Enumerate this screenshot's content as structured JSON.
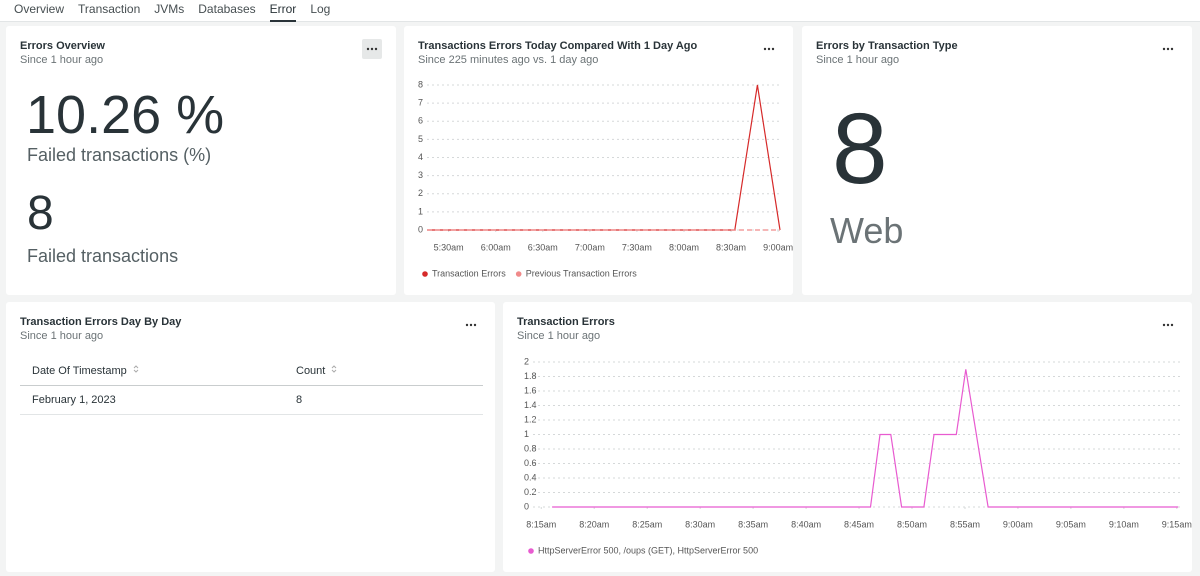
{
  "tabs": [
    "Overview",
    "Transaction",
    "JVMs",
    "Databases",
    "Error",
    "Log"
  ],
  "active_tab": 4,
  "widgets": [
    {
      "title": "Errors Overview",
      "subtitle": "Since 1 hour ago",
      "metrics": [
        {
          "value": "10.26 %",
          "label": "Failed transactions (%)"
        },
        {
          "value": "8",
          "label": "Failed transactions"
        }
      ]
    },
    {
      "title": "Transactions Errors Today Compared With 1 Day Ago",
      "subtitle": "Since 225 minutes ago vs. 1 day ago",
      "chart": {
        "type": "line",
        "xlim": [
          5.27,
          9.02
        ],
        "ylim": [
          0,
          8
        ],
        "yticks": [
          0,
          1,
          2,
          3,
          4,
          5,
          6,
          7,
          8
        ],
        "xticks": [
          {
            "value": 5.5,
            "label": "5:30am"
          },
          {
            "value": 6,
            "label": "6:00am"
          },
          {
            "value": 6.5,
            "label": "6:30am"
          },
          {
            "value": 7,
            "label": "7:00am"
          },
          {
            "value": 7.5,
            "label": "7:30am"
          },
          {
            "value": 8,
            "label": "8:00am"
          },
          {
            "value": 8.5,
            "label": "8:30am"
          },
          {
            "value": 9,
            "label": "9:00am"
          }
        ],
        "grid": true,
        "series": [
          {
            "name": "Transaction Errors",
            "color": "#d62a2a",
            "x": [
              5.27,
              8.54,
              8.78,
              9.02
            ],
            "values": [
              0,
              0,
              8,
              0
            ]
          },
          {
            "name": "Previous Transaction Errors",
            "color": "#f08a8a",
            "dashed": true,
            "x": [
              5.27,
              9.02
            ],
            "values": [
              0,
              0
            ]
          }
        ]
      }
    },
    {
      "title": "Errors by Transaction Type",
      "subtitle": "Since 1 hour ago",
      "value": "8",
      "label": "Web"
    },
    {
      "title": "Transaction Errors Day By Day",
      "subtitle": "Since 1 hour ago",
      "columns": [
        "Date Of Timestamp",
        "Count"
      ],
      "rows": [
        [
          "February 1, 2023",
          "8"
        ]
      ]
    },
    {
      "title": "Transaction Errors",
      "subtitle": "Since 1 hour ago",
      "chart": {
        "type": "line",
        "xlim": [
          8.237,
          9.255
        ],
        "ylim": [
          0,
          2
        ],
        "yticks": [
          0,
          0.2,
          0.4,
          0.6,
          0.8,
          1,
          1.2,
          1.4,
          1.6,
          1.8,
          2
        ],
        "xticks": [
          {
            "value": 8.25,
            "label": "8:15am"
          },
          {
            "value": 8.3333,
            "label": "8:20am"
          },
          {
            "value": 8.4167,
            "label": "8:25am"
          },
          {
            "value": 8.5,
            "label": "8:30am"
          },
          {
            "value": 8.5833,
            "label": "8:35am"
          },
          {
            "value": 8.6667,
            "label": "8:40am"
          },
          {
            "value": 8.75,
            "label": "8:45am"
          },
          {
            "value": 8.8333,
            "label": "8:50am"
          },
          {
            "value": 8.9167,
            "label": "8:55am"
          },
          {
            "value": 9,
            "label": "9:00am"
          },
          {
            "value": 9.0833,
            "label": "9:05am"
          },
          {
            "value": 9.1667,
            "label": "9:10am"
          },
          {
            "value": 9.25,
            "label": "9:15am"
          }
        ],
        "grid": true,
        "series": [
          {
            "name": "HttpServerError 500, /oups (GET), HttpServerError 500",
            "color": "#e85bd0",
            "x": [
              8.267,
              8.768,
              8.783,
              8.8,
              8.817,
              8.852,
              8.868,
              8.903,
              8.918,
              8.953,
              9.252
            ],
            "values": [
              0,
              0,
              1,
              1,
              0,
              0,
              1,
              1,
              1.9,
              0,
              0
            ]
          }
        ]
      }
    }
  ]
}
